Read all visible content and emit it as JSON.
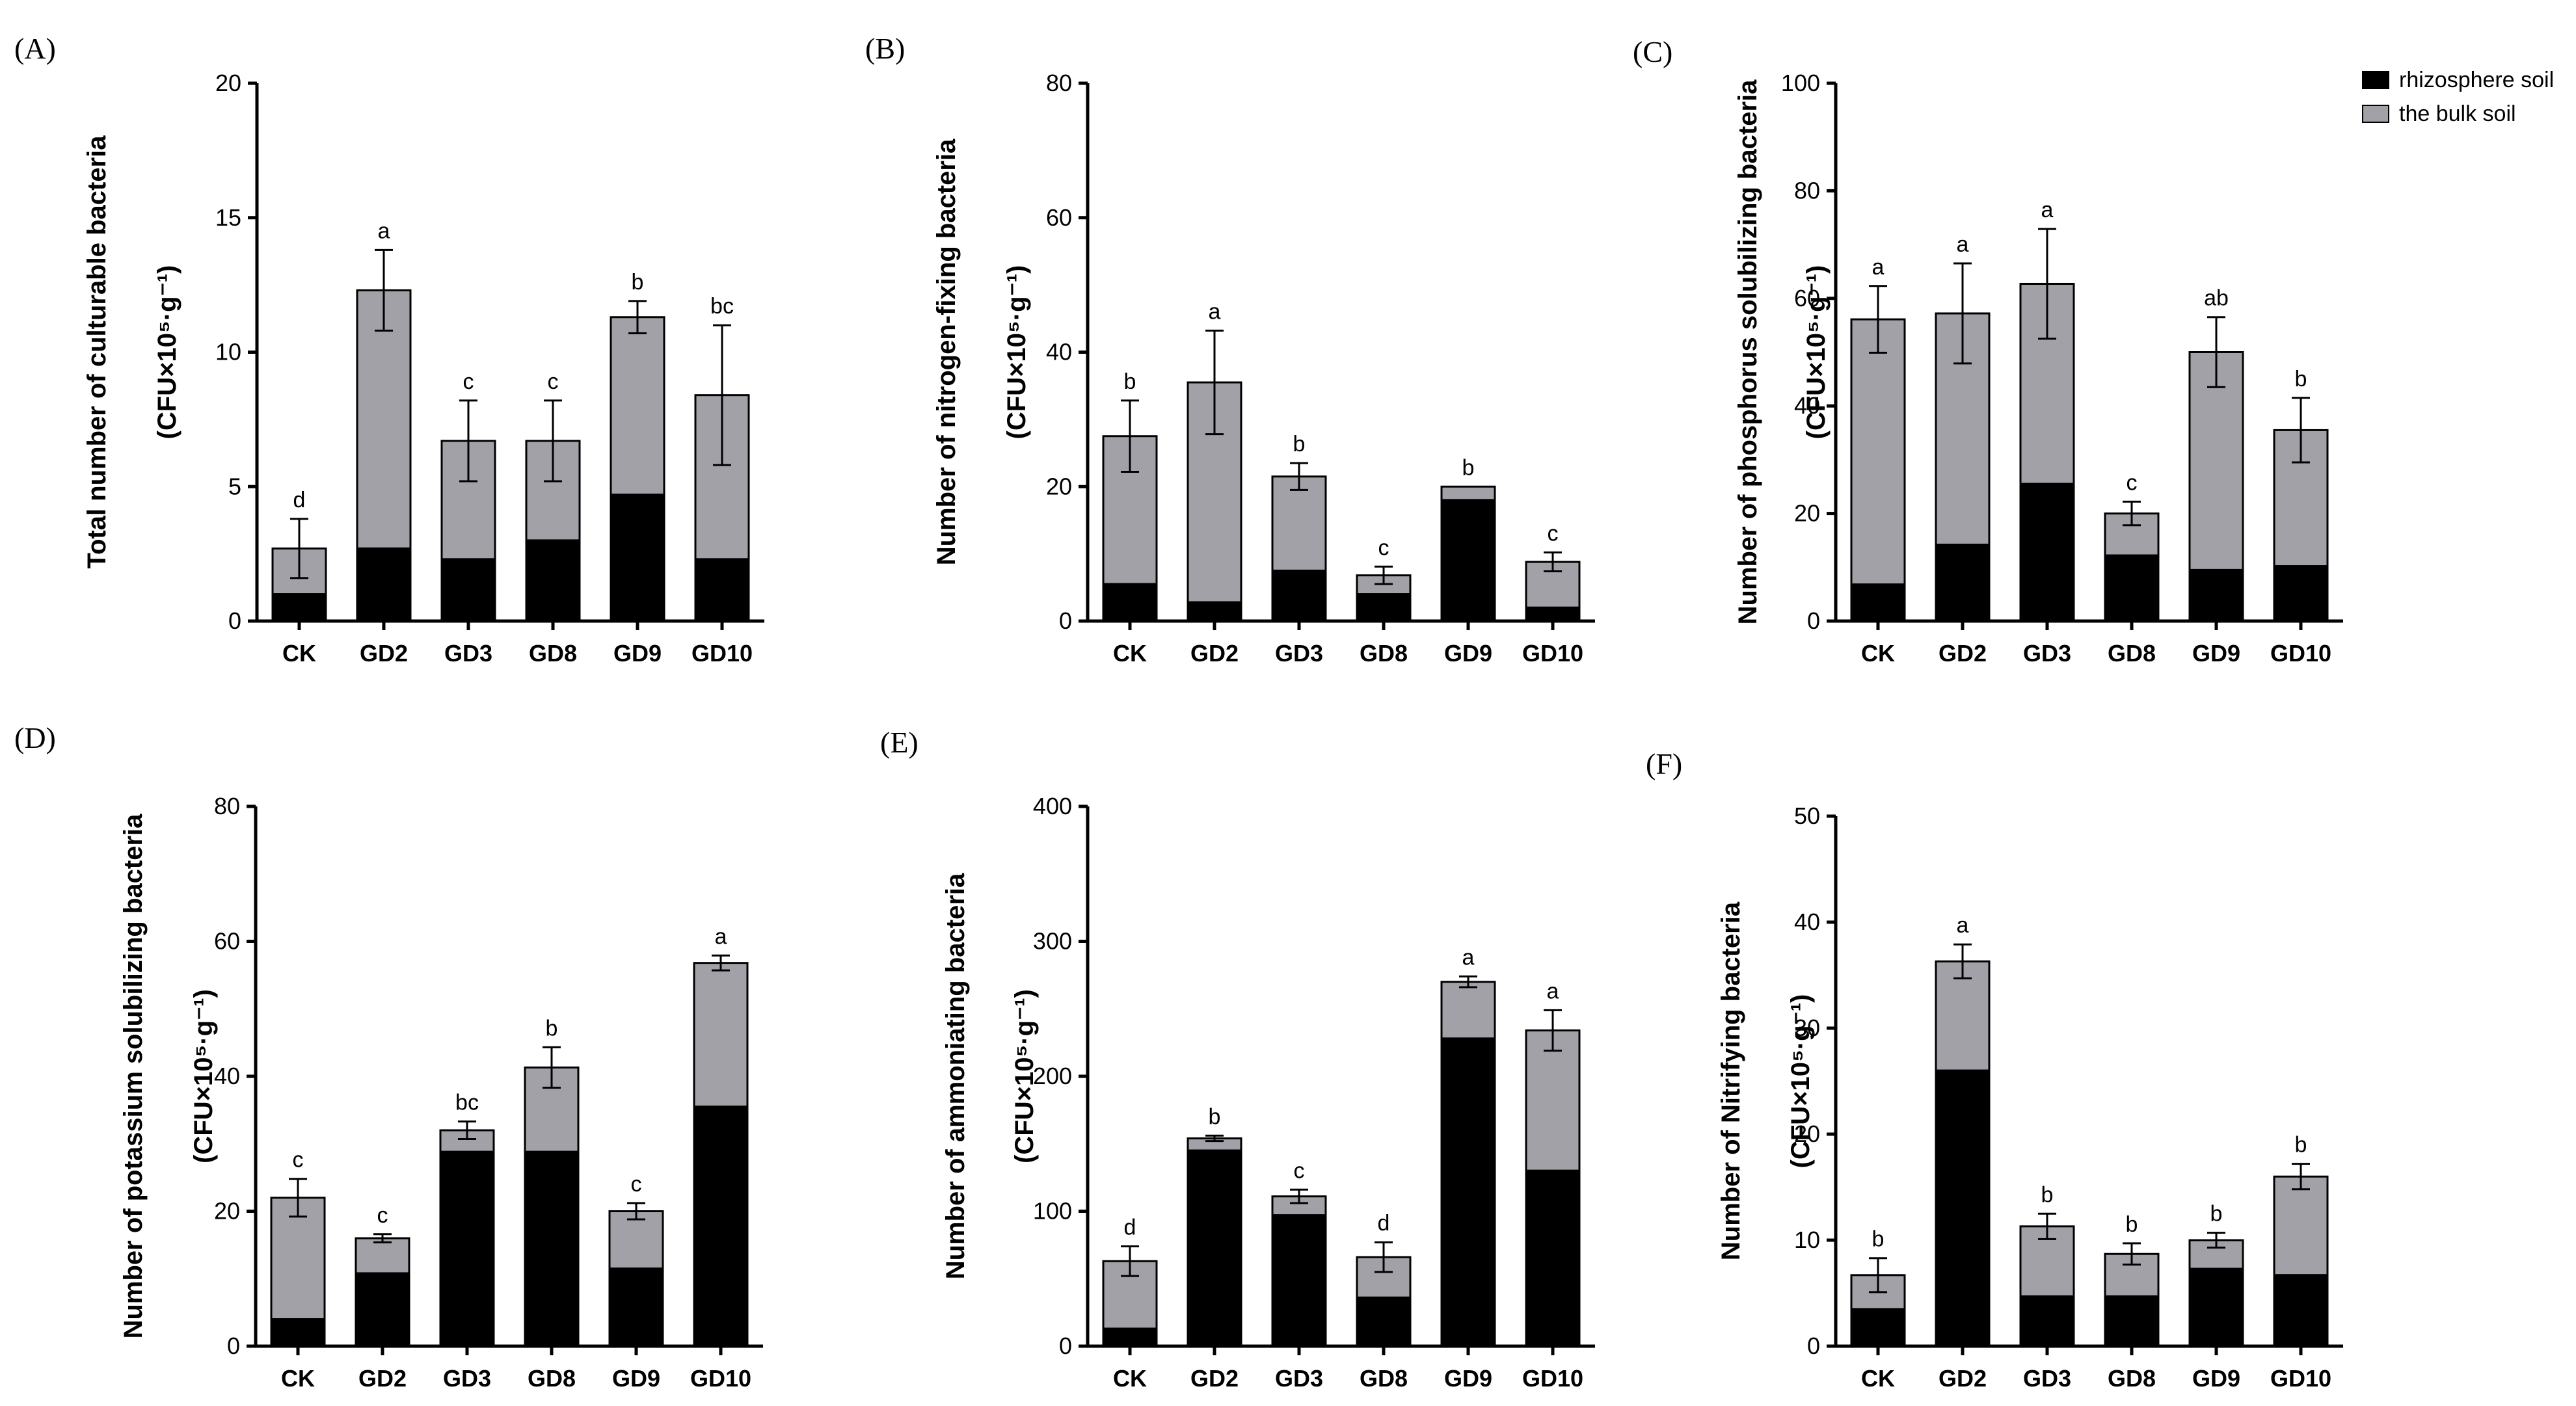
{
  "colors": {
    "rhizosphere": "#000000",
    "bulk": "#a2a1a8",
    "axis": "#000000"
  },
  "legend": [
    {
      "label": "rhizosphere soil",
      "color": "#000000"
    },
    {
      "label": "the bulk soil",
      "color": "#a2a1a8"
    }
  ],
  "chart_data": [
    {
      "panel": "(A)",
      "type": "bar",
      "stacked": true,
      "ylabel": "Total number of culturable bacteria",
      "ylabel_unit": "(CFU×10⁵·g⁻¹)",
      "ylim": [
        0,
        20
      ],
      "yticks": [
        "0",
        "5",
        "10",
        "15",
        "20"
      ],
      "categories": [
        "CK",
        "GD2",
        "GD3",
        "GD8",
        "GD9",
        "GD10"
      ],
      "series": [
        {
          "name": "rhizosphere soil",
          "values": [
            1.0,
            2.7,
            2.3,
            3.0,
            4.7,
            2.3
          ]
        },
        {
          "name": "the bulk soil",
          "values": [
            1.7,
            9.6,
            4.4,
            3.7,
            6.6,
            6.1
          ]
        }
      ],
      "totals": [
        2.7,
        12.3,
        6.7,
        6.7,
        11.3,
        8.4
      ],
      "errors": [
        1.1,
        1.5,
        1.5,
        1.5,
        0.6,
        2.6
      ],
      "significance": [
        "d",
        "a",
        "c",
        "c",
        "b",
        "bc"
      ]
    },
    {
      "panel": "(B)",
      "type": "bar",
      "stacked": true,
      "ylabel": "Number of nitrogen-fixing bacteria",
      "ylabel_unit": "(CFU×10⁵·g⁻¹)",
      "ylim": [
        0,
        80
      ],
      "yticks": [
        "0",
        "20",
        "40",
        "60",
        "80"
      ],
      "categories": [
        "CK",
        "GD2",
        "GD3",
        "GD8",
        "GD9",
        "GD10"
      ],
      "series": [
        {
          "name": "rhizosphere soil",
          "values": [
            5.5,
            2.8,
            7.5,
            4.0,
            18.0,
            2.0
          ]
        },
        {
          "name": "the bulk soil",
          "values": [
            22.0,
            32.7,
            14.0,
            2.8,
            2.0,
            6.8
          ]
        }
      ],
      "totals": [
        27.5,
        35.5,
        21.5,
        6.8,
        20.0,
        8.8
      ],
      "errors": [
        5.3,
        7.7,
        2.0,
        1.3,
        0.0,
        1.4
      ],
      "significance": [
        "b",
        "a",
        "b",
        "c",
        "b",
        "c"
      ]
    },
    {
      "panel": "(C)",
      "type": "bar",
      "stacked": true,
      "ylabel": "Number of phosphorus solubilizing bacteria",
      "ylabel_unit": "(CFU×10⁵·g⁻¹)",
      "ylim": [
        0,
        100
      ],
      "yticks": [
        "0",
        "20",
        "40",
        "60",
        "80",
        "100"
      ],
      "categories": [
        "CK",
        "GD2",
        "GD3",
        "GD8",
        "GD9",
        "GD10"
      ],
      "series": [
        {
          "name": "rhizosphere soil",
          "values": [
            6.8,
            14.2,
            25.5,
            12.2,
            9.5,
            10.2
          ]
        },
        {
          "name": "the bulk soil",
          "values": [
            49.3,
            43.0,
            37.2,
            7.8,
            40.5,
            25.3
          ]
        }
      ],
      "totals": [
        56.1,
        57.2,
        62.7,
        20.0,
        50.0,
        35.5
      ],
      "errors": [
        6.2,
        9.3,
        10.2,
        2.2,
        6.5,
        6.0
      ],
      "significance": [
        "a",
        "a",
        "a",
        "c",
        "ab",
        "b"
      ]
    },
    {
      "panel": "(D)",
      "type": "bar",
      "stacked": true,
      "ylabel": "Number of potassium solubilizing bacteria",
      "ylabel_unit": "(CFU×10⁵·g⁻¹)",
      "ylim": [
        0,
        80
      ],
      "yticks": [
        "0",
        "20",
        "40",
        "60",
        "80"
      ],
      "categories": [
        "CK",
        "GD2",
        "GD3",
        "GD8",
        "GD9",
        "GD10"
      ],
      "series": [
        {
          "name": "rhizosphere soil",
          "values": [
            4.0,
            10.8,
            28.8,
            28.8,
            11.5,
            35.5
          ]
        },
        {
          "name": "the bulk soil",
          "values": [
            18.0,
            5.2,
            3.2,
            12.5,
            8.5,
            21.3
          ]
        }
      ],
      "totals": [
        22.0,
        16.0,
        32.0,
        41.3,
        20.0,
        56.8
      ],
      "errors": [
        2.8,
        0.6,
        1.3,
        3.0,
        1.2,
        1.1
      ],
      "significance": [
        "c",
        "c",
        "bc",
        "b",
        "c",
        "a"
      ]
    },
    {
      "panel": "(E)",
      "type": "bar",
      "stacked": true,
      "ylabel": "Number of ammoniating bacteria",
      "ylabel_unit": "(CFU×10⁵·g⁻¹)",
      "ylim": [
        0,
        400
      ],
      "yticks": [
        "0",
        "100",
        "200",
        "300",
        "400"
      ],
      "categories": [
        "CK",
        "GD2",
        "GD3",
        "GD8",
        "GD9",
        "GD10"
      ],
      "series": [
        {
          "name": "rhizosphere soil",
          "values": [
            13,
            145,
            97,
            36,
            228,
            130
          ]
        },
        {
          "name": "the bulk soil",
          "values": [
            50,
            9,
            14,
            30,
            42,
            104
          ]
        }
      ],
      "totals": [
        63,
        154,
        111,
        66,
        270,
        234
      ],
      "errors": [
        11,
        2,
        5,
        11,
        4,
        15
      ],
      "significance": [
        "d",
        "b",
        "c",
        "d",
        "a",
        "a"
      ]
    },
    {
      "panel": "(F)",
      "type": "bar",
      "stacked": true,
      "ylabel": "Number of Nitrifying bacteria",
      "ylabel_unit": "(CFU×10⁵·g⁻¹)",
      "ylim": [
        0,
        50
      ],
      "yticks": [
        "0",
        "10",
        "20",
        "30",
        "40",
        "50"
      ],
      "categories": [
        "CK",
        "GD2",
        "GD3",
        "GD8",
        "GD9",
        "GD10"
      ],
      "series": [
        {
          "name": "rhizosphere soil",
          "values": [
            3.5,
            26.0,
            4.7,
            4.7,
            7.3,
            6.7
          ]
        },
        {
          "name": "the bulk soil",
          "values": [
            3.2,
            10.3,
            6.6,
            4.0,
            2.7,
            9.3
          ]
        }
      ],
      "totals": [
        6.7,
        36.3,
        11.3,
        8.7,
        10.0,
        16.0
      ],
      "errors": [
        1.6,
        1.6,
        1.2,
        1.0,
        0.7,
        1.2
      ],
      "significance": [
        "b",
        "a",
        "b",
        "b",
        "b",
        "b"
      ]
    }
  ]
}
